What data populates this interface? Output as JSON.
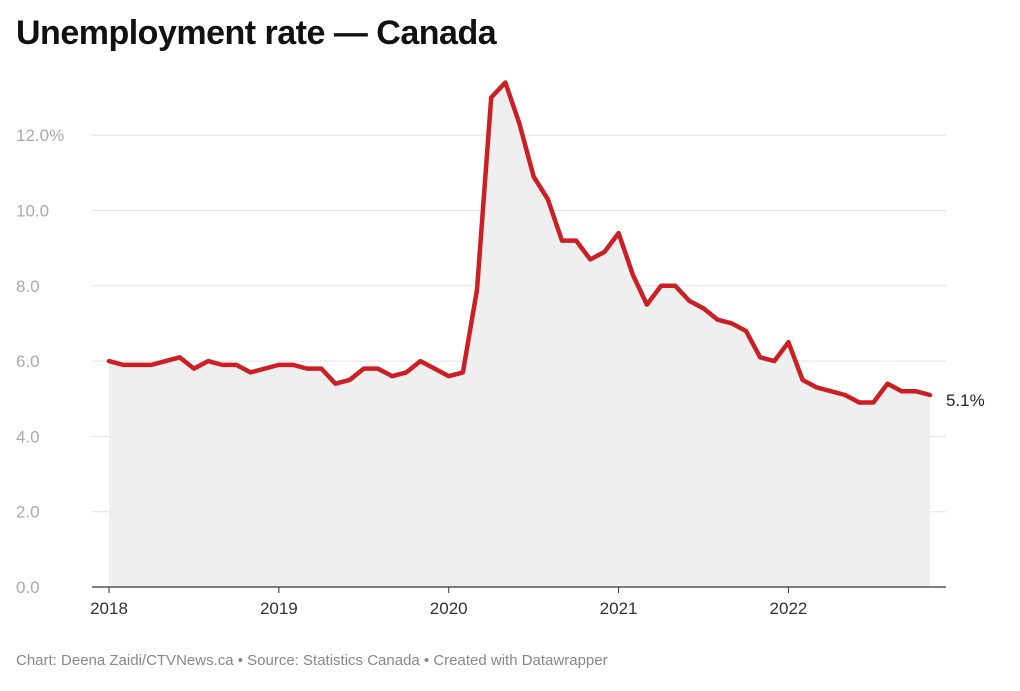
{
  "title": "Unemployment rate — Canada",
  "footer": "Chart: Deena Zaidi/CTVNews.ca • Source: Statistics Canada • Created with Datawrapper",
  "chart_data": {
    "type": "area",
    "x_start": "2018-01",
    "x_end": "2022-11",
    "x_frequency": "monthly",
    "x_ticks": [
      "2018",
      "2019",
      "2020",
      "2021",
      "2022"
    ],
    "y_ticks": [
      "0.0",
      "2.0",
      "4.0",
      "6.0",
      "8.0",
      "10.0",
      "12.0%"
    ],
    "ylim": [
      0,
      13.5
    ],
    "grid": "horizontal",
    "line_color": "#cc1f24",
    "fill_color": "#efefef",
    "end_label": "5.1%",
    "series": [
      {
        "values": [
          6.0,
          5.9,
          5.9,
          5.9,
          6.0,
          6.1,
          5.8,
          6.0,
          5.9,
          5.9,
          5.7,
          5.8,
          5.9,
          5.9,
          5.8,
          5.8,
          5.4,
          5.5,
          5.8,
          5.8,
          5.6,
          5.7,
          6.0,
          5.8,
          5.6,
          5.7,
          7.9,
          13.0,
          13.4,
          12.3,
          10.9,
          10.3,
          9.2,
          9.2,
          8.7,
          8.9,
          9.4,
          8.3,
          7.5,
          8.0,
          8.0,
          7.6,
          7.4,
          7.1,
          7.0,
          6.8,
          6.1,
          6.0,
          6.5,
          5.5,
          5.3,
          5.2,
          5.1,
          4.9,
          4.9,
          5.4,
          5.2,
          5.2,
          5.1
        ]
      }
    ]
  }
}
